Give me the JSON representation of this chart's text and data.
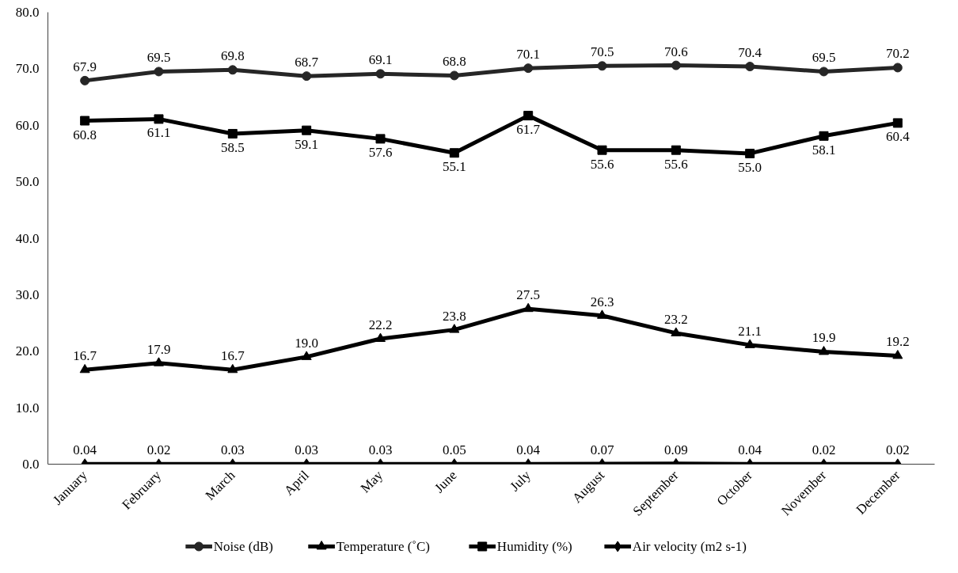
{
  "chart_data": {
    "type": "line",
    "categories": [
      "January",
      "February",
      "March",
      "April",
      "May",
      "June",
      "July",
      "August",
      "September",
      "October",
      "November",
      "December"
    ],
    "ylim": [
      0,
      80
    ],
    "yticks": [
      {
        "value": 0,
        "label": "0.0"
      },
      {
        "value": 10,
        "label": "10.0"
      },
      {
        "value": 20,
        "label": "20.0"
      },
      {
        "value": 30,
        "label": "30.0"
      },
      {
        "value": 40,
        "label": "40.0"
      },
      {
        "value": 50,
        "label": "50.0"
      },
      {
        "value": 60,
        "label": "60.0"
      },
      {
        "value": 70,
        "label": "70.0"
      },
      {
        "value": 80,
        "label": "80.0"
      }
    ],
    "grid": false,
    "legend": "bottom",
    "line_style": "solid",
    "series": [
      {
        "name": "Noise (dB)",
        "color": "#262626",
        "marker": "circle",
        "values": [
          67.9,
          69.5,
          69.8,
          68.7,
          69.1,
          68.8,
          70.1,
          70.5,
          70.6,
          70.4,
          69.5,
          70.2
        ],
        "value_labels": [
          "67.9",
          "69.5",
          "69.8",
          "68.7",
          "69.1",
          "68.8",
          "70.1",
          "70.5",
          "70.6",
          "70.4",
          "69.5",
          "70.2"
        ]
      },
      {
        "name": "Temperature (˚C)",
        "color": "#000000",
        "marker": "triangle",
        "values": [
          16.7,
          17.9,
          16.7,
          19.0,
          22.2,
          23.8,
          27.5,
          26.3,
          23.2,
          21.1,
          19.9,
          19.2
        ],
        "value_labels": [
          "16.7",
          "17.9",
          "16.7",
          "19.0",
          "22.2",
          "23.8",
          "27.5",
          "26.3",
          "23.2",
          "21.1",
          "19.9",
          "19.2"
        ]
      },
      {
        "name": "Humidity (%)",
        "color": "#000000",
        "marker": "square",
        "values": [
          60.8,
          61.1,
          58.5,
          59.1,
          57.6,
          55.1,
          61.7,
          55.6,
          55.6,
          55.0,
          58.1,
          60.4
        ],
        "value_labels": [
          "60.8",
          "61.1",
          "58.5",
          "59.1",
          "57.6",
          "55.1",
          "61.7",
          "55.6",
          "55.6",
          "55.0",
          "58.1",
          "60.4"
        ]
      },
      {
        "name": "Air velocity (m2 s-1)",
        "color": "#000000",
        "marker": "diamond",
        "values": [
          0.04,
          0.02,
          0.03,
          0.03,
          0.03,
          0.05,
          0.04,
          0.07,
          0.09,
          0.04,
          0.02,
          0.02
        ],
        "value_labels": [
          "0.04",
          "0.02",
          "0.03",
          "0.03",
          "0.03",
          "0.05",
          "0.04",
          "0.07",
          "0.09",
          "0.04",
          "0.02",
          "0.02"
        ]
      }
    ]
  }
}
